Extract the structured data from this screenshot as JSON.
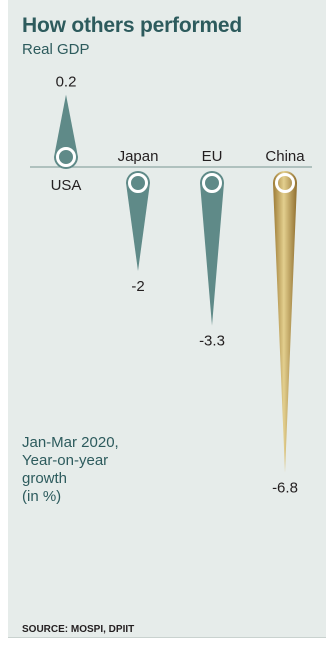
{
  "title": "How others performed",
  "subtitle": "Real GDP",
  "note": "Jan-Mar 2020,\nYear-on-year\ngrowth\n(in %)",
  "source": "SOURCE: MOSPI, DPIIT",
  "chart_data": {
    "type": "bar",
    "categories": [
      "USA",
      "Japan",
      "EU",
      "China"
    ],
    "values": [
      0.2,
      -2,
      -3.3,
      -6.8
    ],
    "value_labels": [
      "0.2",
      "-2",
      "-3.3",
      "-6.8"
    ],
    "colors": {
      "default": "#5f8a88",
      "highlight": "#b89a4e",
      "baseline": "#8ea7a5",
      "background": "#e6ecea"
    },
    "highlight_category": "China"
  }
}
